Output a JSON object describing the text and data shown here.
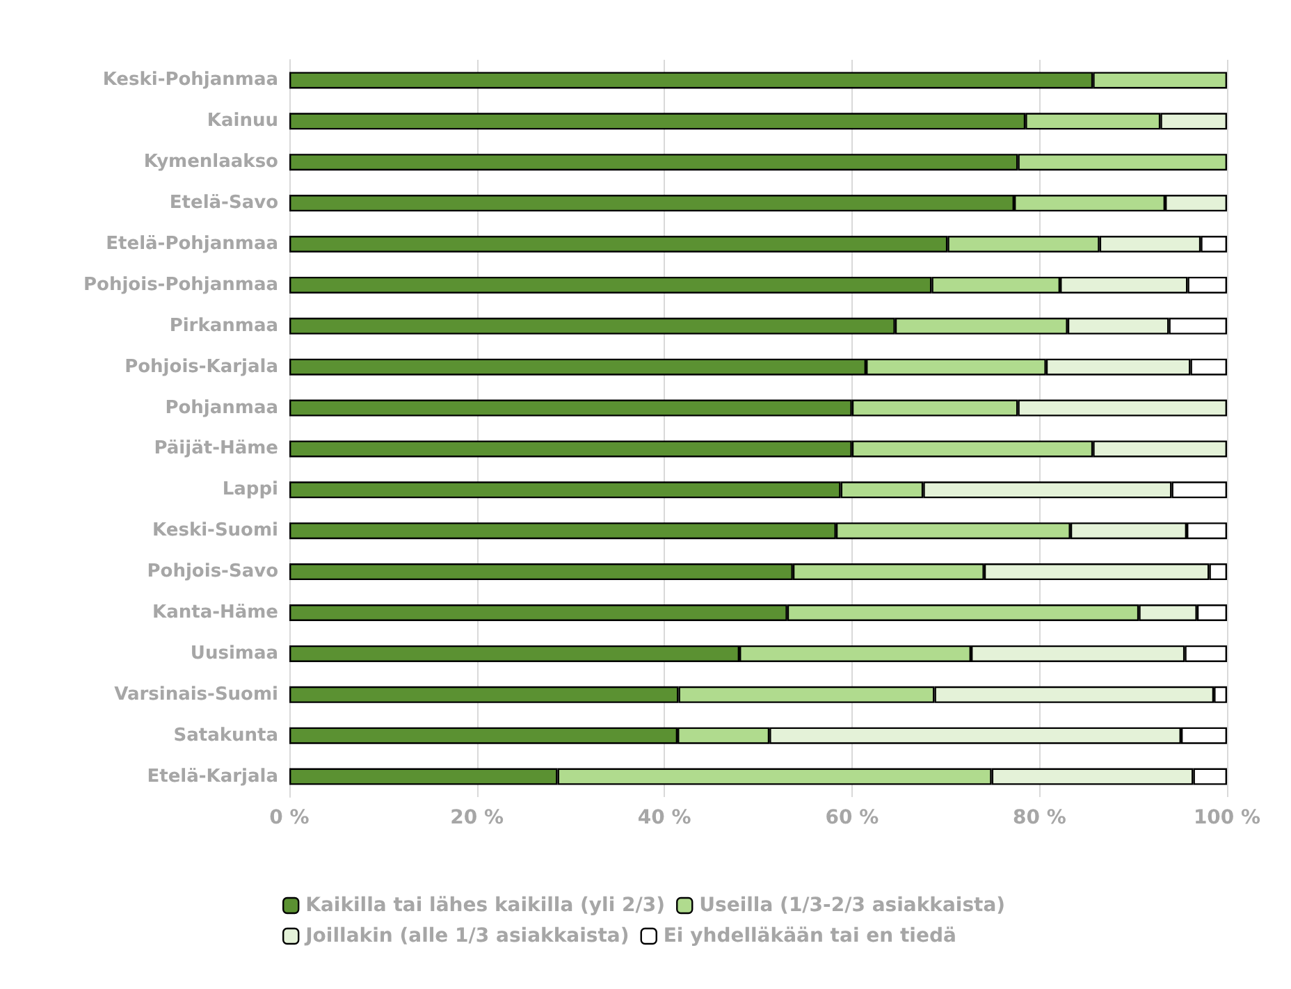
{
  "chart_data": {
    "type": "bar",
    "orientation": "horizontal",
    "stacked": true,
    "categories": [
      "Keski-Pohjanmaa",
      "Kainuu",
      "Kymenlaakso",
      "Etelä-Savo",
      "Etelä-Pohjanmaa",
      "Pohjois-Pohjanmaa",
      "Pirkanmaa",
      "Pohjois-Karjala",
      "Pohjanmaa",
      "Päijät-Häme",
      "Lappi",
      "Keski-Suomi",
      "Pohjois-Savo",
      "Kanta-Häme",
      "Uusimaa",
      "Varsinais-Suomi",
      "Satakunta",
      "Etelä-Karjala"
    ],
    "series": [
      {
        "name": "Kaikilla tai lähes kaikilla (yli 2/3)",
        "color": "#5b9132",
        "values": [
          85.7,
          78.5,
          77.7,
          77.3,
          70.2,
          68.5,
          64.6,
          61.5,
          60.0,
          60.0,
          58.8,
          58.3,
          53.7,
          53.1,
          48.0,
          41.5,
          41.4,
          28.6
        ]
      },
      {
        "name": "Useilla (1/3-2/3 asiakkaista)",
        "color": "#b0db8e",
        "values": [
          14.3,
          14.4,
          22.3,
          16.1,
          16.2,
          13.7,
          18.4,
          19.2,
          17.7,
          25.7,
          8.8,
          25.0,
          20.4,
          37.5,
          24.7,
          27.3,
          9.8,
          46.3
        ]
      },
      {
        "name": "Joillakin (alle 1/3 asiakkaista)",
        "color": "#e4f2d8",
        "values": [
          0,
          7.1,
          0,
          6.6,
          10.8,
          13.6,
          10.8,
          15.4,
          22.3,
          14.3,
          26.5,
          12.4,
          24.0,
          6.2,
          22.8,
          29.8,
          43.9,
          21.5
        ]
      },
      {
        "name": "Ei yhdelläkään tai en tiedä",
        "color": "#ffffff",
        "values": [
          0,
          0,
          0,
          0,
          2.8,
          4.2,
          6.2,
          3.9,
          0,
          0,
          5.9,
          4.3,
          1.9,
          3.2,
          4.5,
          1.4,
          4.9,
          3.6
        ]
      }
    ],
    "xlim": [
      0,
      100
    ],
    "xticks": [
      {
        "value": 0,
        "label": "0 %"
      },
      {
        "value": 20,
        "label": "20 %"
      },
      {
        "value": 40,
        "label": "40 %"
      },
      {
        "value": 60,
        "label": "60 %"
      },
      {
        "value": 80,
        "label": "80 %"
      },
      {
        "value": 100,
        "label": "100 %"
      }
    ],
    "grid": "x",
    "legend": "bottom"
  }
}
